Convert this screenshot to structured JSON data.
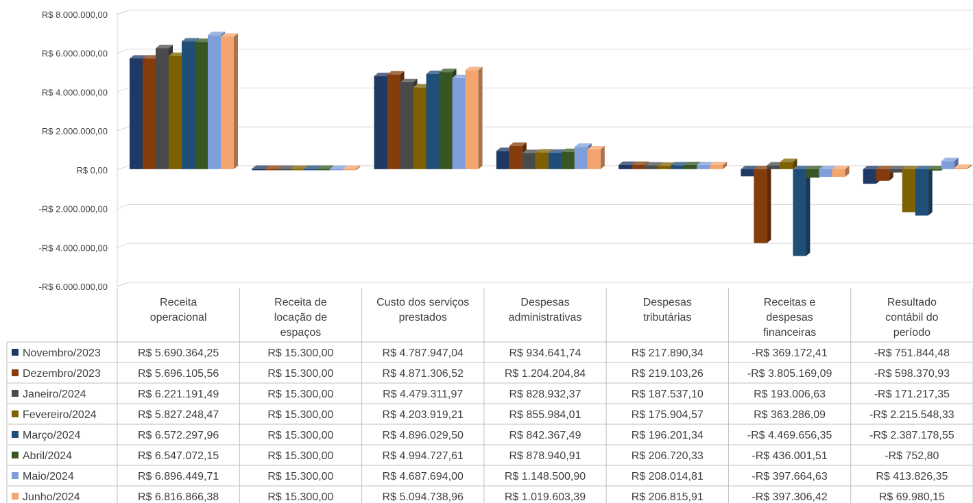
{
  "chart_data": {
    "type": "bar",
    "variant": "3d-clustered-column-with-data-table",
    "categories": [
      [
        "Receita",
        "operacional"
      ],
      [
        "Receita de",
        "locação de",
        "espaços"
      ],
      [
        "Custo dos serviços",
        "prestados"
      ],
      [
        "Despesas",
        "administrativas"
      ],
      [
        "Despesas",
        "tributárias"
      ],
      [
        "Receitas e",
        "despesas",
        "financeiras"
      ],
      [
        "Resultado",
        "contábil do",
        "período"
      ]
    ],
    "y_ticks": [
      "R$ 8.000.000,00",
      "R$ 6.000.000,00",
      "R$ 4.000.000,00",
      "R$ 2.000.000,00",
      "R$ 0,00",
      "-R$ 2.000.000,00",
      "-R$ 4.000.000,00",
      "-R$ 6.000.000,00"
    ],
    "ylim": [
      -6000000,
      8000000
    ],
    "grid": true,
    "legend": "data-table-left",
    "series": [
      {
        "name": "Novembro/2023",
        "color": "#1f3864",
        "values": [
          5690364.25,
          15300.0,
          4787947.04,
          934641.74,
          217890.34,
          -369172.41,
          -751844.48
        ],
        "labels": [
          "R$ 5.690.364,25",
          "R$ 15.300,00",
          "R$ 4.787.947,04",
          "R$ 934.641,74",
          "R$ 217.890,34",
          "-R$ 369.172,41",
          "-R$ 751.844,48"
        ]
      },
      {
        "name": "Dezembro/2023",
        "color": "#843c0c",
        "values": [
          5696105.56,
          15300.0,
          4871306.52,
          1204204.84,
          219103.26,
          -3805169.09,
          -598370.93
        ],
        "labels": [
          "R$ 5.696.105,56",
          "R$ 15.300,00",
          "R$ 4.871.306,52",
          "R$ 1.204.204,84",
          "R$ 219.103,26",
          "-R$ 3.805.169,09",
          "-R$ 598.370,93"
        ]
      },
      {
        "name": "Janeiro/2024",
        "color": "#4a4a4a",
        "values": [
          6221191.49,
          15300.0,
          4479311.97,
          828932.37,
          187537.1,
          193006.63,
          -171217.35
        ],
        "labels": [
          "R$ 6.221.191,49",
          "R$ 15.300,00",
          "R$ 4.479.311,97",
          "R$ 828.932,37",
          "R$ 187.537,10",
          "R$ 193.006,63",
          "-R$ 171.217,35"
        ]
      },
      {
        "name": "Fevereiro/2024",
        "color": "#7f6000",
        "values": [
          5827248.47,
          15300.0,
          4203919.21,
          855984.01,
          175904.57,
          363286.09,
          -2215548.33
        ],
        "labels": [
          "R$ 5.827.248,47",
          "R$ 15.300,00",
          "R$ 4.203.919,21",
          "R$ 855.984,01",
          "R$ 175.904,57",
          "R$ 363.286,09",
          "-R$ 2.215.548,33"
        ]
      },
      {
        "name": "Março/2024",
        "color": "#1f4e79",
        "values": [
          6572297.96,
          15300.0,
          4896029.5,
          842367.49,
          196201.34,
          -4469656.35,
          -2387178.55
        ],
        "labels": [
          "R$ 6.572.297,96",
          "R$ 15.300,00",
          "R$ 4.896.029,50",
          "R$ 842.367,49",
          "R$ 196.201,34",
          "-R$ 4.469.656,35",
          "-R$ 2.387.178,55"
        ]
      },
      {
        "name": "Abril/2024",
        "color": "#375623",
        "values": [
          6547072.15,
          15300.0,
          4994727.61,
          878940.91,
          206720.33,
          -436001.51,
          -752.8
        ],
        "labels": [
          "R$ 6.547.072,15",
          "R$ 15.300,00",
          "R$ 4.994.727,61",
          "R$ 878.940,91",
          "R$ 206.720,33",
          "-R$ 436.001,51",
          "-R$ 752,80"
        ]
      },
      {
        "name": "Maio/2024",
        "color": "#7f9fdb",
        "values": [
          6896449.71,
          15300.0,
          4687694.0,
          1148500.9,
          208014.81,
          -397664.63,
          413826.35
        ],
        "labels": [
          "R$ 6.896.449,71",
          "R$ 15.300,00",
          "R$ 4.687.694,00",
          "R$ 1.148.500,90",
          "R$ 208.014,81",
          "-R$ 397.664,63",
          "R$ 413.826,35"
        ]
      },
      {
        "name": "Junho/2024",
        "color": "#f4a46e",
        "values": [
          6816866.38,
          15300.0,
          5094738.96,
          1019603.39,
          206815.91,
          -397306.42,
          69980.15
        ],
        "labels": [
          "R$ 6.816.866,38",
          "R$ 15.300,00",
          "R$ 5.094.738,96",
          "R$ 1.019.603,39",
          "R$ 206.815,91",
          "-R$ 397.306,42",
          "R$ 69.980,15"
        ]
      }
    ]
  }
}
